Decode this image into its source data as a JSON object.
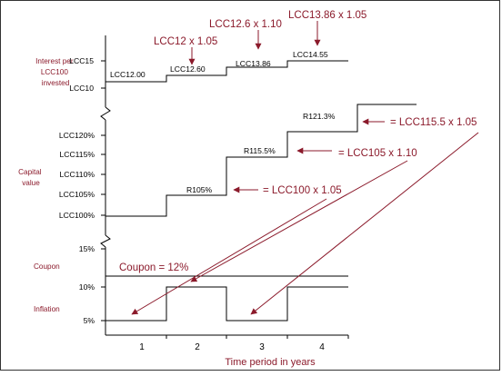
{
  "colors": {
    "accent": "#8b1a2b",
    "line": "#000000"
  },
  "interest": {
    "label": [
      "Interest per",
      "LCC100",
      "invested"
    ],
    "ticks": [
      "LCC15",
      "LCC10"
    ],
    "step_labels": [
      "LCC12.00",
      "LCC12.60",
      "LCC13.86",
      "LCC14.55"
    ],
    "annotations": [
      "LCC12 x 1.05",
      "LCC12.6 x 1.10",
      "LCC13.86 x 1.05"
    ]
  },
  "capital": {
    "label": [
      "Capital",
      "value"
    ],
    "ticks": [
      "LCC120%",
      "LCC115%",
      "LCC110%",
      "LCC105%",
      "LCC100%"
    ],
    "step_labels": [
      "R105%",
      "R115.5%",
      "R121.3%"
    ],
    "annotations": [
      "= LCC100 x 1.05",
      "= LCC105 x 1.10",
      "= LCC115.5 x 1.05"
    ]
  },
  "rates": {
    "coupon_label": "Coupon",
    "inflation_label": "Inflation",
    "ticks": [
      "15%",
      "10%",
      "5%"
    ],
    "coupon_annotation": "Coupon = 12%"
  },
  "x_axis": {
    "ticks": [
      "1",
      "2",
      "3",
      "4"
    ],
    "title": "Time period in years"
  }
}
